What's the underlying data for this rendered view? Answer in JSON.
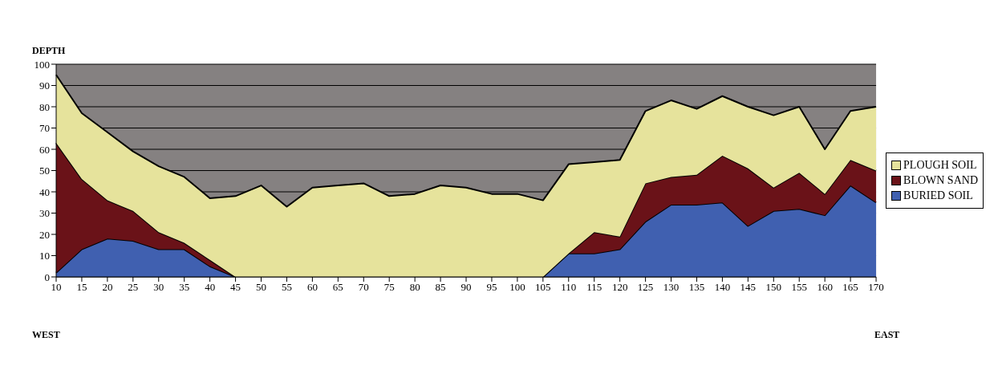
{
  "chart_data": {
    "type": "area",
    "title": "DEPTH",
    "stacked": true,
    "categories": [
      "10",
      "15",
      "20",
      "25",
      "30",
      "35",
      "40",
      "45",
      "50",
      "55",
      "60",
      "65",
      "70",
      "75",
      "80",
      "85",
      "90",
      "95",
      "100",
      "105",
      "110",
      "115",
      "120",
      "125",
      "130",
      "135",
      "140",
      "145",
      "150",
      "155",
      "160",
      "165",
      "170"
    ],
    "series": [
      {
        "name": "BURIED SOIL",
        "color": "#4060b0",
        "values": [
          2,
          13,
          18,
          17,
          13,
          13,
          5,
          0,
          0,
          0,
          0,
          0,
          0,
          0,
          0,
          0,
          0,
          0,
          0,
          0,
          11,
          11,
          13,
          26,
          34,
          34,
          35,
          24,
          31,
          32,
          29,
          43,
          35
        ]
      },
      {
        "name": "BLOWN SAND",
        "color": "#6a1218",
        "values": [
          61,
          33,
          18,
          14,
          8,
          3,
          3,
          0,
          0,
          0,
          0,
          0,
          0,
          0,
          0,
          0,
          0,
          0,
          0,
          0,
          0,
          10,
          6,
          18,
          13,
          14,
          22,
          27,
          11,
          17,
          10,
          12,
          15
        ]
      },
      {
        "name": "PLOUGH SOIL",
        "color": "#e6e39c",
        "values": [
          32,
          31,
          32,
          28,
          31,
          31,
          29,
          38,
          43,
          33,
          42,
          43,
          44,
          38,
          39,
          43,
          42,
          39,
          39,
          36,
          42,
          33,
          36,
          34,
          36,
          31,
          28,
          29,
          34,
          31,
          21,
          23,
          30
        ]
      }
    ],
    "ylim": [
      0,
      100
    ],
    "yticks": [
      0,
      10,
      20,
      30,
      40,
      50,
      60,
      70,
      80,
      90,
      100
    ],
    "grid": "y",
    "legend": "right",
    "annotations": [
      "WEST",
      "EAST"
    ]
  }
}
